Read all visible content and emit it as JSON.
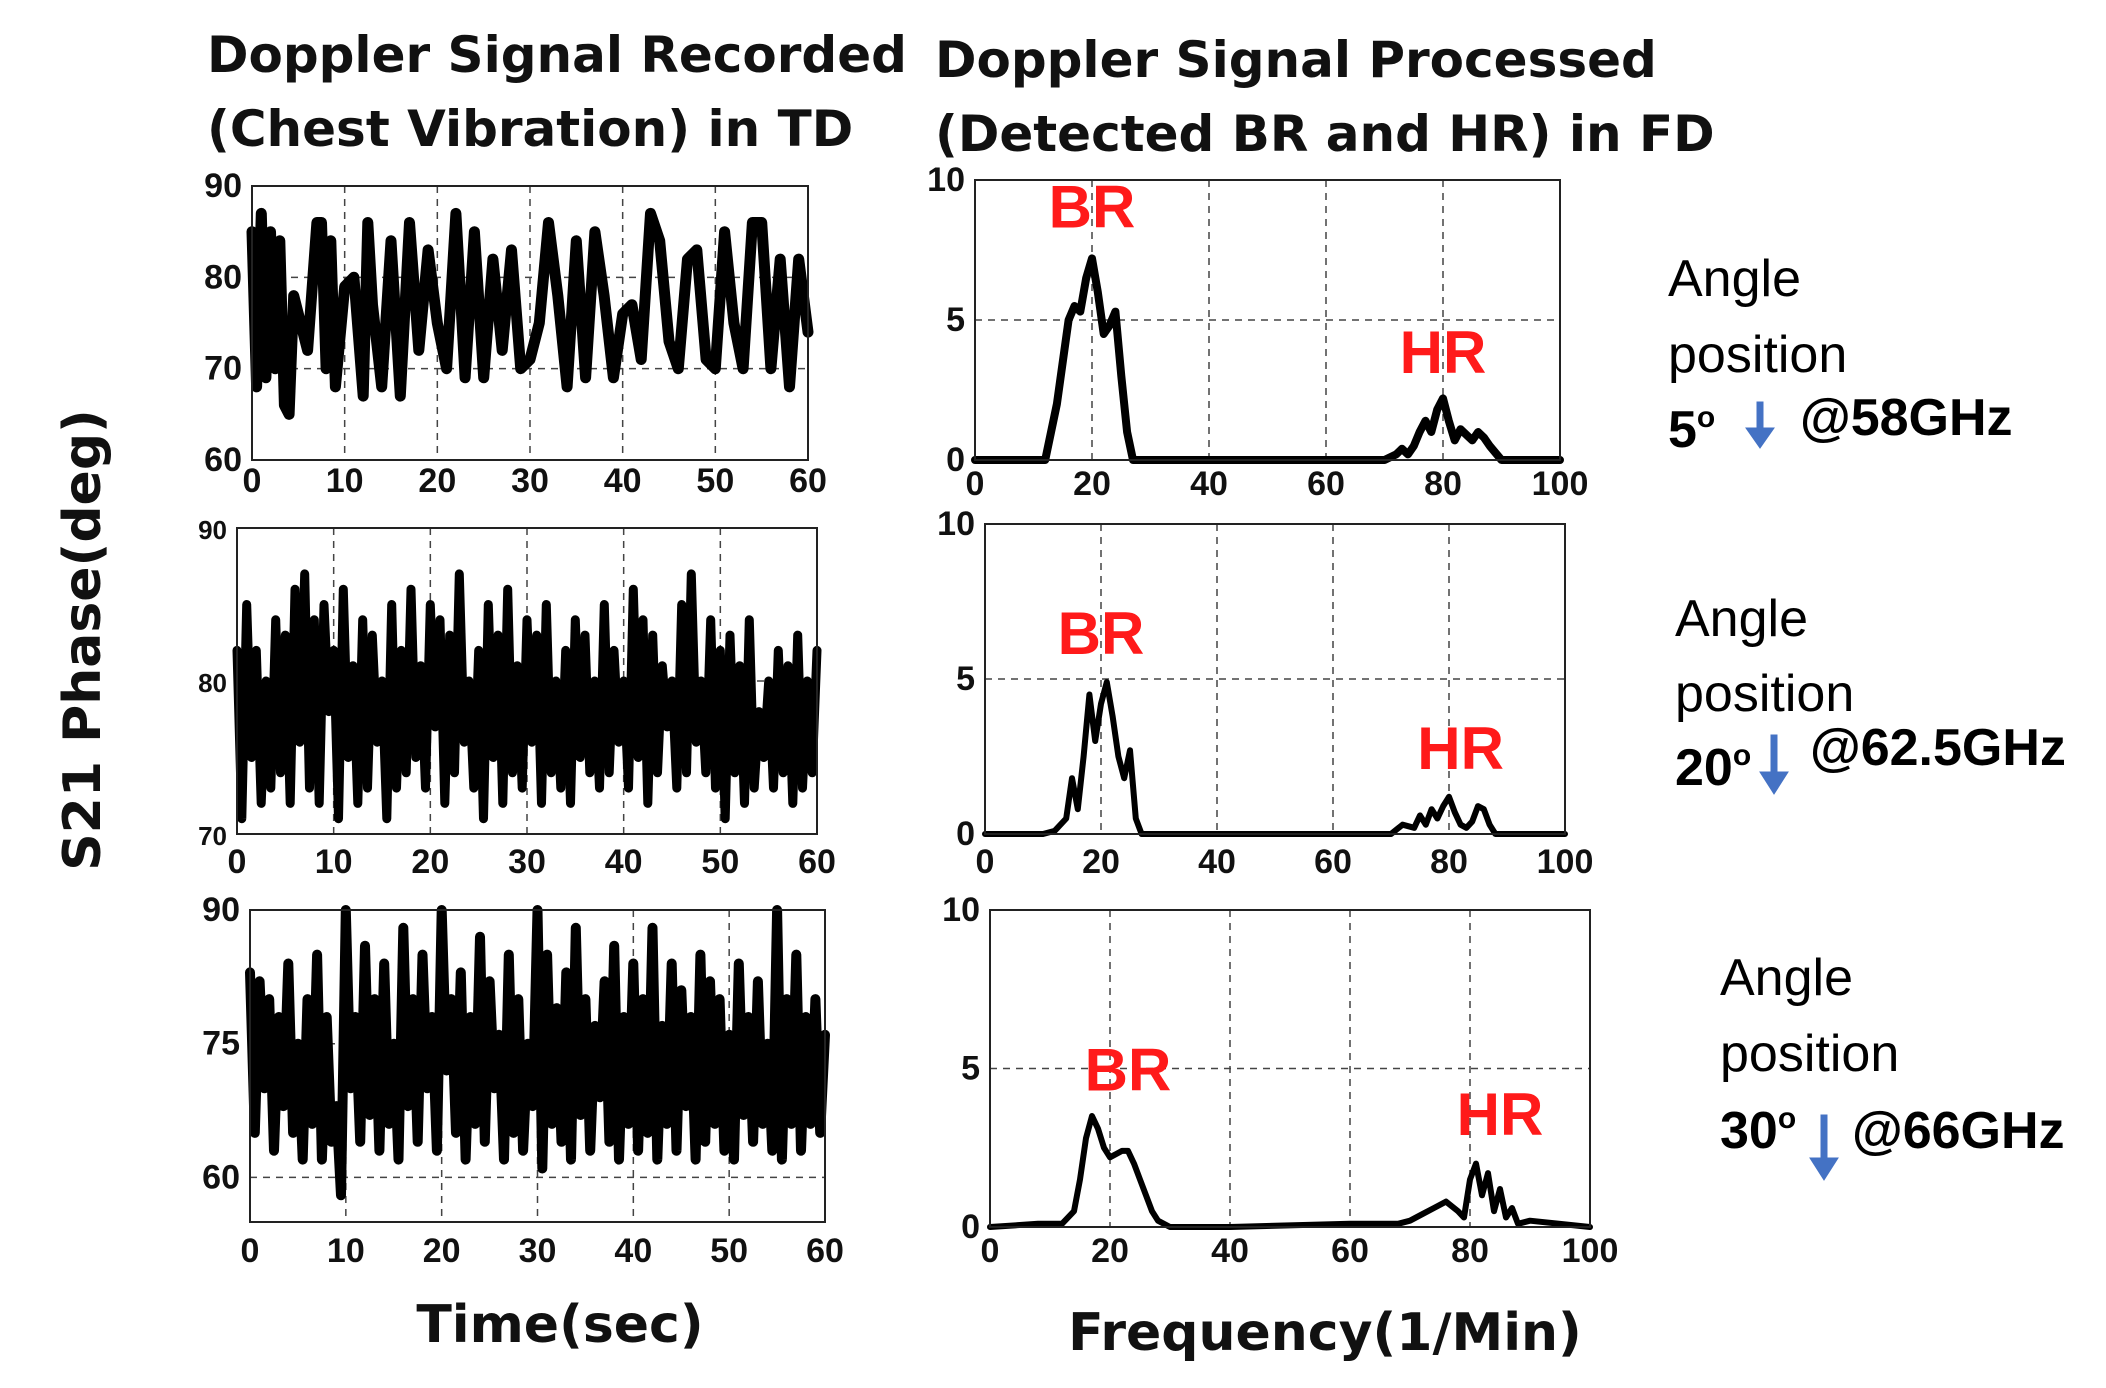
{
  "titles": {
    "left_line1": "Doppler Signal Recorded",
    "left_line2": "(Chest Vibration) in TD",
    "right_line1": "Doppler Signal Processed",
    "right_line2": "(Detected BR and HR) in FD"
  },
  "ylabel": "S21 Phase(deg)",
  "xlabel_time": "Time(sec)",
  "xlabel_freq": "Frequency(1/Min)",
  "rows": [
    {
      "angle_label": "Angle",
      "position_label": "position",
      "angle_value": "5",
      "degree_symbol": "o",
      "frequency": "@58GHz"
    },
    {
      "angle_label": "Angle",
      "position_label": "position",
      "angle_value": "20",
      "degree_symbol": "o",
      "frequency": "@62.5GHz"
    },
    {
      "angle_label": "Angle",
      "position_label": "position",
      "angle_value": "30",
      "degree_symbol": "o",
      "frequency": "@66GHz"
    }
  ],
  "colors": {
    "trace": "#000000",
    "peak_label": "#ff1a1a",
    "arrow": "#4472c4",
    "grid": "#444444"
  },
  "chart_data": [
    {
      "type": "line",
      "domain": "time",
      "x_ticks": [
        "0",
        "10",
        "20",
        "30",
        "40",
        "50",
        "60"
      ],
      "y_ticks": [
        "60",
        "70",
        "80",
        "90"
      ],
      "xlim": [
        0,
        60
      ],
      "ylim": [
        60,
        90
      ],
      "grid": true,
      "x": [
        0,
        0.5,
        1,
        1.5,
        2,
        2.5,
        3,
        3.5,
        4,
        4.5,
        5,
        6,
        7,
        7.5,
        8,
        8.5,
        9,
        10,
        11,
        12,
        12.5,
        13,
        14,
        15,
        16,
        17,
        18,
        19,
        20,
        21,
        22,
        23,
        24,
        25,
        26,
        27,
        28,
        29,
        30,
        31,
        32,
        33,
        34,
        35,
        36,
        37,
        38,
        39,
        40,
        41,
        42,
        43,
        44,
        45,
        46,
        47,
        48,
        49,
        50,
        51,
        52,
        53,
        54,
        55,
        56,
        57,
        58,
        59,
        60
      ],
      "y": [
        85,
        68,
        87,
        69,
        85,
        70,
        84,
        66,
        65,
        78,
        76,
        72,
        86,
        86,
        70,
        84,
        68,
        79,
        80,
        67,
        86,
        77,
        68,
        84,
        67,
        86,
        72,
        83,
        75,
        70,
        87,
        69,
        85,
        69,
        82,
        72,
        83,
        70,
        71,
        75,
        86,
        78,
        68,
        84,
        69,
        85,
        78,
        69,
        76,
        77,
        71,
        87,
        84,
        73,
        70,
        82,
        83,
        71,
        70,
        85,
        75,
        70,
        86,
        86,
        70,
        82,
        68,
        82,
        74
      ]
    },
    {
      "type": "line",
      "domain": "frequency",
      "x_ticks": [
        "0",
        "20",
        "40",
        "60",
        "80",
        "100"
      ],
      "y_ticks": [
        "0",
        "5",
        "10"
      ],
      "xlim": [
        0,
        100
      ],
      "ylim": [
        0,
        10
      ],
      "grid": true,
      "x": [
        0,
        12,
        14,
        16,
        17,
        18,
        19,
        20,
        21,
        22,
        23,
        24,
        25,
        26,
        27,
        30,
        60,
        70,
        72,
        73,
        74,
        75,
        76,
        77,
        78,
        79,
        80,
        81,
        82,
        83,
        84,
        85,
        86,
        87,
        88,
        90,
        100
      ],
      "y": [
        0,
        0,
        2,
        5,
        5.5,
        5.3,
        6.5,
        7.2,
        6,
        4.5,
        4.8,
        5.3,
        3,
        1,
        0,
        0,
        0,
        0,
        0.2,
        0.4,
        0.2,
        0.5,
        1,
        1.4,
        1,
        1.8,
        2.2,
        1.4,
        0.7,
        1.1,
        0.9,
        0.7,
        1,
        0.8,
        0.5,
        0,
        0
      ],
      "annotations": [
        {
          "text": "BR",
          "x": 20,
          "y": 8.3
        },
        {
          "text": "HR",
          "x": 80,
          "y": 3.1
        }
      ]
    },
    {
      "type": "line",
      "domain": "time",
      "x_ticks": [
        "0",
        "10",
        "20",
        "30",
        "40",
        "50",
        "60"
      ],
      "y_ticks": [
        "70",
        "80",
        "90"
      ],
      "xlim": [
        0,
        60
      ],
      "ylim": [
        70,
        90
      ],
      "grid": true,
      "x": [
        0,
        0.5,
        1,
        1.5,
        2,
        2.5,
        3,
        3.5,
        4,
        4.5,
        5,
        5.5,
        6,
        6.5,
        7,
        7.5,
        8,
        8.5,
        9,
        9.5,
        10,
        10.5,
        11,
        11.5,
        12,
        12.5,
        13,
        13.5,
        14,
        14.5,
        15,
        15.5,
        16,
        16.5,
        17,
        17.5,
        18,
        18.5,
        19,
        19.5,
        20,
        20.5,
        21,
        21.5,
        22,
        22.5,
        23,
        23.5,
        24,
        24.5,
        25,
        25.5,
        26,
        26.5,
        27,
        27.5,
        28,
        28.5,
        29,
        29.5,
        30,
        30.5,
        31,
        31.5,
        32,
        32.5,
        33,
        33.5,
        34,
        34.5,
        35,
        35.5,
        36,
        36.5,
        37,
        37.5,
        38,
        38.5,
        39,
        39.5,
        40,
        40.5,
        41,
        41.5,
        42,
        42.5,
        43,
        43.5,
        44,
        44.5,
        45,
        45.5,
        46,
        46.5,
        47,
        47.5,
        48,
        48.5,
        49,
        49.5,
        50,
        50.5,
        51,
        51.5,
        52,
        52.5,
        53,
        53.5,
        54,
        54.5,
        55,
        55.5,
        56,
        56.5,
        57,
        57.5,
        58,
        58.5,
        59,
        59.5,
        60
      ],
      "y": [
        82,
        71,
        85,
        75,
        82,
        72,
        80,
        73,
        84,
        74,
        83,
        72,
        86,
        76,
        87,
        73,
        84,
        72,
        85,
        78,
        82,
        71,
        86,
        75,
        81,
        72,
        84,
        73,
        83,
        76,
        80,
        71,
        85,
        73,
        82,
        74,
        86,
        75,
        81,
        73,
        85,
        77,
        84,
        72,
        83,
        74,
        87,
        76,
        80,
        73,
        82,
        71,
        85,
        75,
        83,
        72,
        86,
        74,
        81,
        73,
        84,
        76,
        83,
        72,
        85,
        74,
        80,
        73,
        82,
        72,
        84,
        75,
        83,
        74,
        80,
        73,
        85,
        74,
        82,
        76,
        80,
        73,
        86,
        75,
        84,
        72,
        83,
        74,
        81,
        77,
        80,
        73,
        85,
        74,
        87,
        76,
        80,
        74,
        84,
        73,
        82,
        71,
        83,
        74,
        81,
        72,
        84,
        73,
        78,
        75,
        80,
        73,
        82,
        74,
        81,
        72,
        83,
        73,
        80,
        74,
        82
      ]
    },
    {
      "type": "line",
      "domain": "frequency",
      "x_ticks": [
        "0",
        "20",
        "40",
        "60",
        "80",
        "100"
      ],
      "y_ticks": [
        "0",
        "5",
        "10"
      ],
      "xlim": [
        0,
        100
      ],
      "ylim": [
        0,
        10
      ],
      "grid": true,
      "x": [
        0,
        10,
        12,
        14,
        15,
        16,
        17,
        18,
        19,
        20,
        21,
        22,
        23,
        24,
        25,
        26,
        27,
        40,
        60,
        68,
        70,
        72,
        74,
        75,
        76,
        77,
        78,
        79,
        80,
        81,
        82,
        83,
        84,
        85,
        86,
        87,
        88,
        90,
        100
      ],
      "y": [
        0,
        0,
        0.1,
        0.5,
        1.8,
        0.8,
        2.5,
        4.5,
        3,
        4.2,
        4.9,
        3.8,
        2.5,
        1.8,
        2.7,
        0.5,
        0,
        0,
        0,
        0,
        0,
        0.3,
        0.2,
        0.6,
        0.3,
        0.8,
        0.5,
        0.9,
        1.2,
        0.7,
        0.3,
        0.2,
        0.4,
        0.9,
        0.8,
        0.3,
        0,
        0,
        0
      ],
      "annotations": [
        {
          "text": "BR",
          "x": 20,
          "y": 5.8
        },
        {
          "text": "HR",
          "x": 82,
          "y": 2.1
        }
      ]
    },
    {
      "type": "line",
      "domain": "time",
      "x_ticks": [
        "0",
        "10",
        "20",
        "30",
        "40",
        "50",
        "60"
      ],
      "y_ticks": [
        "60",
        "75",
        "90"
      ],
      "xlim": [
        0,
        60
      ],
      "ylim": [
        55,
        90
      ],
      "grid": true,
      "x": [
        0,
        0.5,
        1,
        1.5,
        2,
        2.5,
        3,
        3.5,
        4,
        4.5,
        5,
        5.5,
        6,
        6.5,
        7,
        7.5,
        8,
        8.5,
        9,
        9.5,
        10,
        10.5,
        11,
        11.5,
        12,
        12.5,
        13,
        13.5,
        14,
        14.5,
        15,
        15.5,
        16,
        16.5,
        17,
        17.5,
        18,
        18.5,
        19,
        19.5,
        20,
        20.5,
        21,
        21.5,
        22,
        22.5,
        23,
        23.5,
        24,
        24.5,
        25,
        25.5,
        26,
        26.5,
        27,
        27.5,
        28,
        28.5,
        29,
        29.5,
        30,
        30.5,
        31,
        31.5,
        32,
        32.5,
        33,
        33.5,
        34,
        34.5,
        35,
        35.5,
        36,
        36.5,
        37,
        37.5,
        38,
        38.5,
        39,
        39.5,
        40,
        40.5,
        41,
        41.5,
        42,
        42.5,
        43,
        43.5,
        44,
        44.5,
        45,
        45.5,
        46,
        46.5,
        47,
        47.5,
        48,
        48.5,
        49,
        49.5,
        50,
        50.5,
        51,
        51.5,
        52,
        52.5,
        53,
        53.5,
        54,
        54.5,
        55,
        55.5,
        56,
        56.5,
        57,
        57.5,
        58,
        58.5,
        59,
        59.5,
        60
      ],
      "y": [
        83,
        65,
        82,
        70,
        80,
        63,
        78,
        68,
        84,
        65,
        75,
        62,
        80,
        66,
        85,
        62,
        78,
        64,
        68,
        58,
        90,
        70,
        78,
        64,
        86,
        67,
        80,
        63,
        84,
        66,
        75,
        62,
        88,
        68,
        80,
        64,
        85,
        70,
        78,
        63,
        90,
        72,
        80,
        65,
        83,
        62,
        78,
        66,
        87,
        64,
        82,
        70,
        76,
        62,
        85,
        65,
        80,
        63,
        75,
        68,
        90,
        61,
        85,
        66,
        79,
        64,
        83,
        62,
        88,
        67,
        80,
        63,
        77,
        69,
        82,
        64,
        86,
        62,
        78,
        66,
        84,
        63,
        80,
        65,
        88,
        62,
        77,
        66,
        84,
        63,
        81,
        68,
        78,
        62,
        85,
        64,
        82,
        66,
        80,
        63,
        76,
        62,
        84,
        67,
        78,
        64,
        82,
        66,
        75,
        63,
        90,
        62,
        80,
        66,
        85,
        63,
        78,
        66,
        80,
        65,
        76
      ]
    },
    {
      "type": "line",
      "domain": "frequency",
      "x_ticks": [
        "0",
        "20",
        "40",
        "60",
        "80",
        "100"
      ],
      "y_ticks": [
        "0",
        "5",
        "10"
      ],
      "xlim": [
        0,
        100
      ],
      "ylim": [
        0,
        10
      ],
      "grid": true,
      "x": [
        0,
        8,
        12,
        14,
        15,
        16,
        17,
        18,
        19,
        20,
        21,
        22,
        23,
        24,
        25,
        26,
        27,
        28,
        30,
        40,
        60,
        68,
        70,
        72,
        74,
        76,
        78,
        79,
        80,
        81,
        82,
        83,
        84,
        85,
        86,
        87,
        88,
        90,
        100
      ],
      "y": [
        0,
        0.1,
        0.1,
        0.5,
        1.5,
        2.8,
        3.5,
        3.1,
        2.5,
        2.2,
        2.3,
        2.4,
        2.4,
        2,
        1.5,
        1,
        0.5,
        0.2,
        0,
        0,
        0.1,
        0.1,
        0.2,
        0.4,
        0.6,
        0.8,
        0.5,
        0.3,
        1.5,
        2,
        1,
        1.7,
        0.5,
        1.2,
        0.3,
        0.6,
        0.1,
        0.2,
        0
      ],
      "annotations": [
        {
          "text": "BR",
          "x": 23,
          "y": 4.3
        },
        {
          "text": "HR",
          "x": 85,
          "y": 2.9
        }
      ]
    }
  ]
}
